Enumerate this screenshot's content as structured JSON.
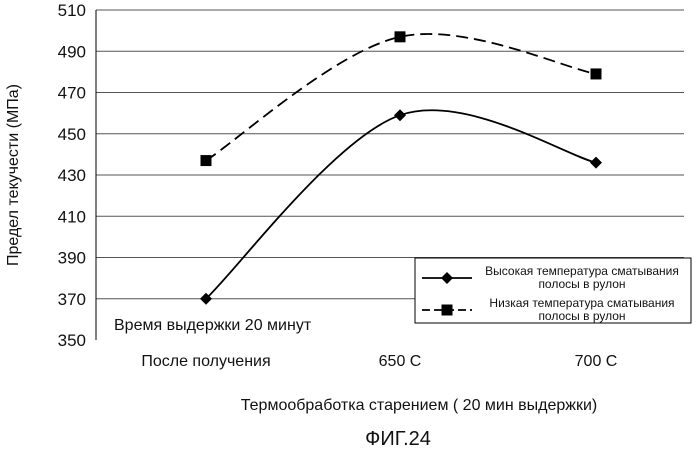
{
  "chart_data": {
    "type": "line",
    "categories": [
      "После получения",
      "650 C",
      "700 C"
    ],
    "xlabel": "Термообработка старением ( 20 мин выдержки)",
    "ylabel": "Предел текучести (МПа)",
    "ylim": [
      350,
      510
    ],
    "yticks": [
      350,
      370,
      390,
      410,
      430,
      450,
      470,
      490,
      510
    ],
    "grid": true,
    "legend_position": "right",
    "series": [
      {
        "name": "Высокая температура сматывания полосы в рулон",
        "name_lines": [
          "Высокая температура сматывания",
          "полосы в рулон"
        ],
        "values": [
          370,
          459,
          436
        ],
        "marker": "diamond",
        "line_style": "solid",
        "color": "#000000"
      },
      {
        "name": "Низкая температура сматывания полосы в рулон",
        "name_lines": [
          "Низкая температура сматывания",
          "полосы в рулон"
        ],
        "values": [
          437,
          497,
          479
        ],
        "marker": "square",
        "line_style": "dashed",
        "color": "#000000"
      }
    ],
    "annotation": "Время выдержки 20 минут",
    "caption": "ФИГ.24"
  }
}
